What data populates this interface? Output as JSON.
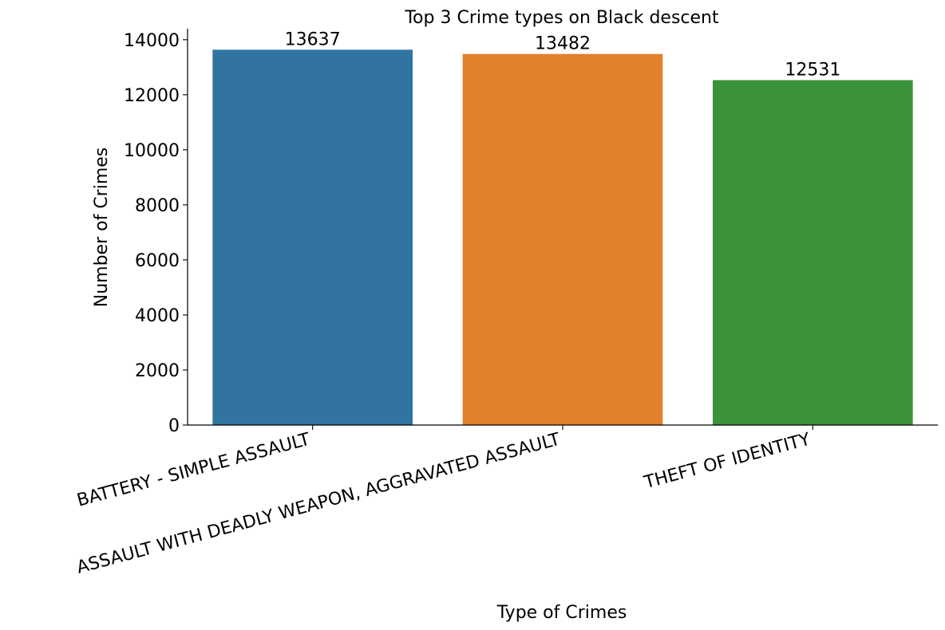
{
  "chart_data": {
    "type": "bar",
    "title": "Top 3 Crime types on Black descent",
    "xlabel": "Type of Crimes",
    "ylabel": "Number of Crimes",
    "categories": [
      "BATTERY - SIMPLE ASSAULT",
      "ASSAULT WITH DEADLY WEAPON, AGGRAVATED ASSAULT",
      "THEFT OF IDENTITY"
    ],
    "values": [
      13637,
      13482,
      12531
    ],
    "value_labels": [
      "13637",
      "13482",
      "12531"
    ],
    "colors": [
      "#3274a1",
      "#e1812c",
      "#3a923a"
    ],
    "ylim": [
      0,
      14400
    ],
    "yticks": [
      0,
      2000,
      4000,
      6000,
      8000,
      10000,
      12000,
      14000
    ],
    "ytick_labels": [
      "0",
      "2000",
      "4000",
      "6000",
      "8000",
      "10000",
      "12000",
      "14000"
    ],
    "grid": false,
    "legend": "none"
  }
}
